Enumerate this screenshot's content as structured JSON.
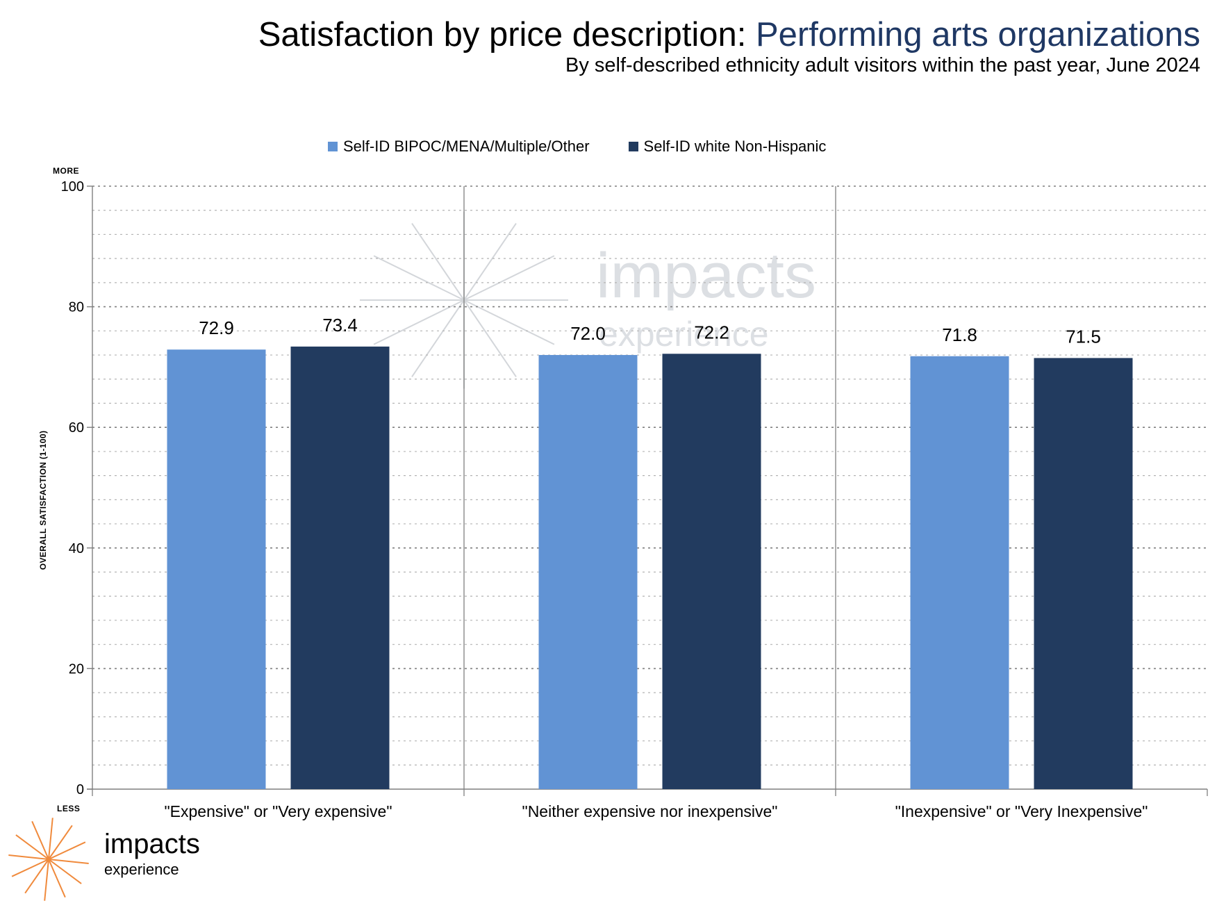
{
  "title": {
    "prefix": "Satisfaction by price description: ",
    "accent": "Performing arts organizations"
  },
  "subtitle": "By self-described ethnicity adult visitors within the past year, June 2024",
  "axis_markers": {
    "top": "MORE",
    "bottom": "LESS"
  },
  "watermark": {
    "main": "impacts",
    "sub": "experience"
  },
  "logo": {
    "main": "impacts",
    "sub": "experience",
    "accent_color": "#f08a3c"
  },
  "colors": {
    "series1": "#6193d4",
    "series2": "#223b5f",
    "title_accent": "#1f3864"
  },
  "chart_data": {
    "type": "bar",
    "title": "Satisfaction by price description: Performing arts organizations",
    "subtitle": "By self-described ethnicity adult visitors within the past year, June 2024",
    "categories": [
      "\"Expensive\" or \"Very expensive\"",
      "\"Neither expensive nor inexpensive\"",
      "\"Inexpensive\" or \"Very Inexpensive\""
    ],
    "series": [
      {
        "name": "Self-ID BIPOC/MENA/Multiple/Other",
        "color": "#6193d4",
        "values": [
          72.9,
          72.0,
          71.8
        ],
        "labels": [
          "72.9",
          "72.0",
          "71.8"
        ]
      },
      {
        "name": "Self-ID white Non-Hispanic",
        "color": "#223b5f",
        "values": [
          73.4,
          72.2,
          71.5
        ],
        "labels": [
          "73.4",
          "72.2",
          "71.5"
        ]
      }
    ],
    "xlabel": "",
    "ylabel": "OVERALL SATISFACTION (1-100)",
    "ylim": [
      0,
      100
    ],
    "yticks": [
      0,
      20,
      40,
      60,
      80,
      100
    ],
    "ytick_labels": [
      "0",
      "20",
      "40",
      "60",
      "80",
      "100"
    ],
    "grid": true,
    "legend_position": "top"
  }
}
